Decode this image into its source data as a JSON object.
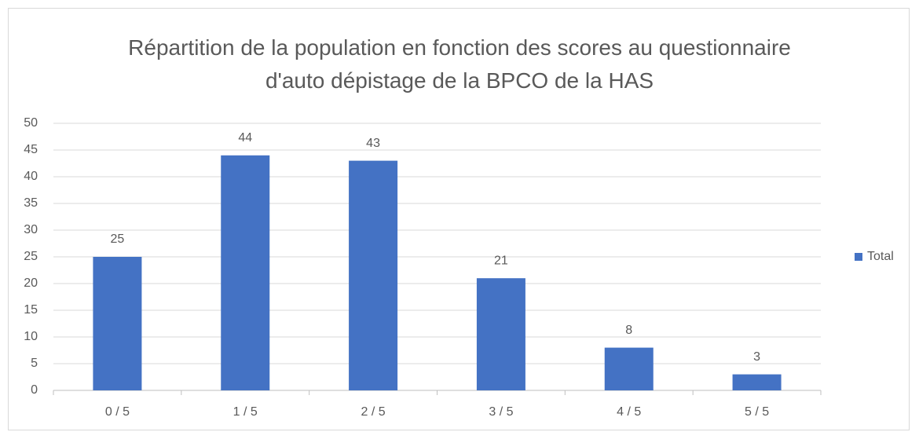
{
  "chart_data": {
    "type": "bar",
    "title": "Répartition de la population en fonction des scores au questionnaire d'auto dépistage de la BPCO de la HAS",
    "categories": [
      "0 / 5",
      "1 / 5",
      "2 / 5",
      "3 / 5",
      "4 / 5",
      "5 / 5"
    ],
    "series": [
      {
        "name": "Total",
        "color": "#4472c4",
        "values": [
          25,
          44,
          43,
          21,
          8,
          3
        ]
      }
    ],
    "ylim": [
      0,
      50
    ],
    "yticks": [
      0,
      5,
      10,
      15,
      20,
      25,
      30,
      35,
      40,
      45,
      50
    ],
    "grid": true,
    "legend": "right",
    "data_labels": true
  }
}
